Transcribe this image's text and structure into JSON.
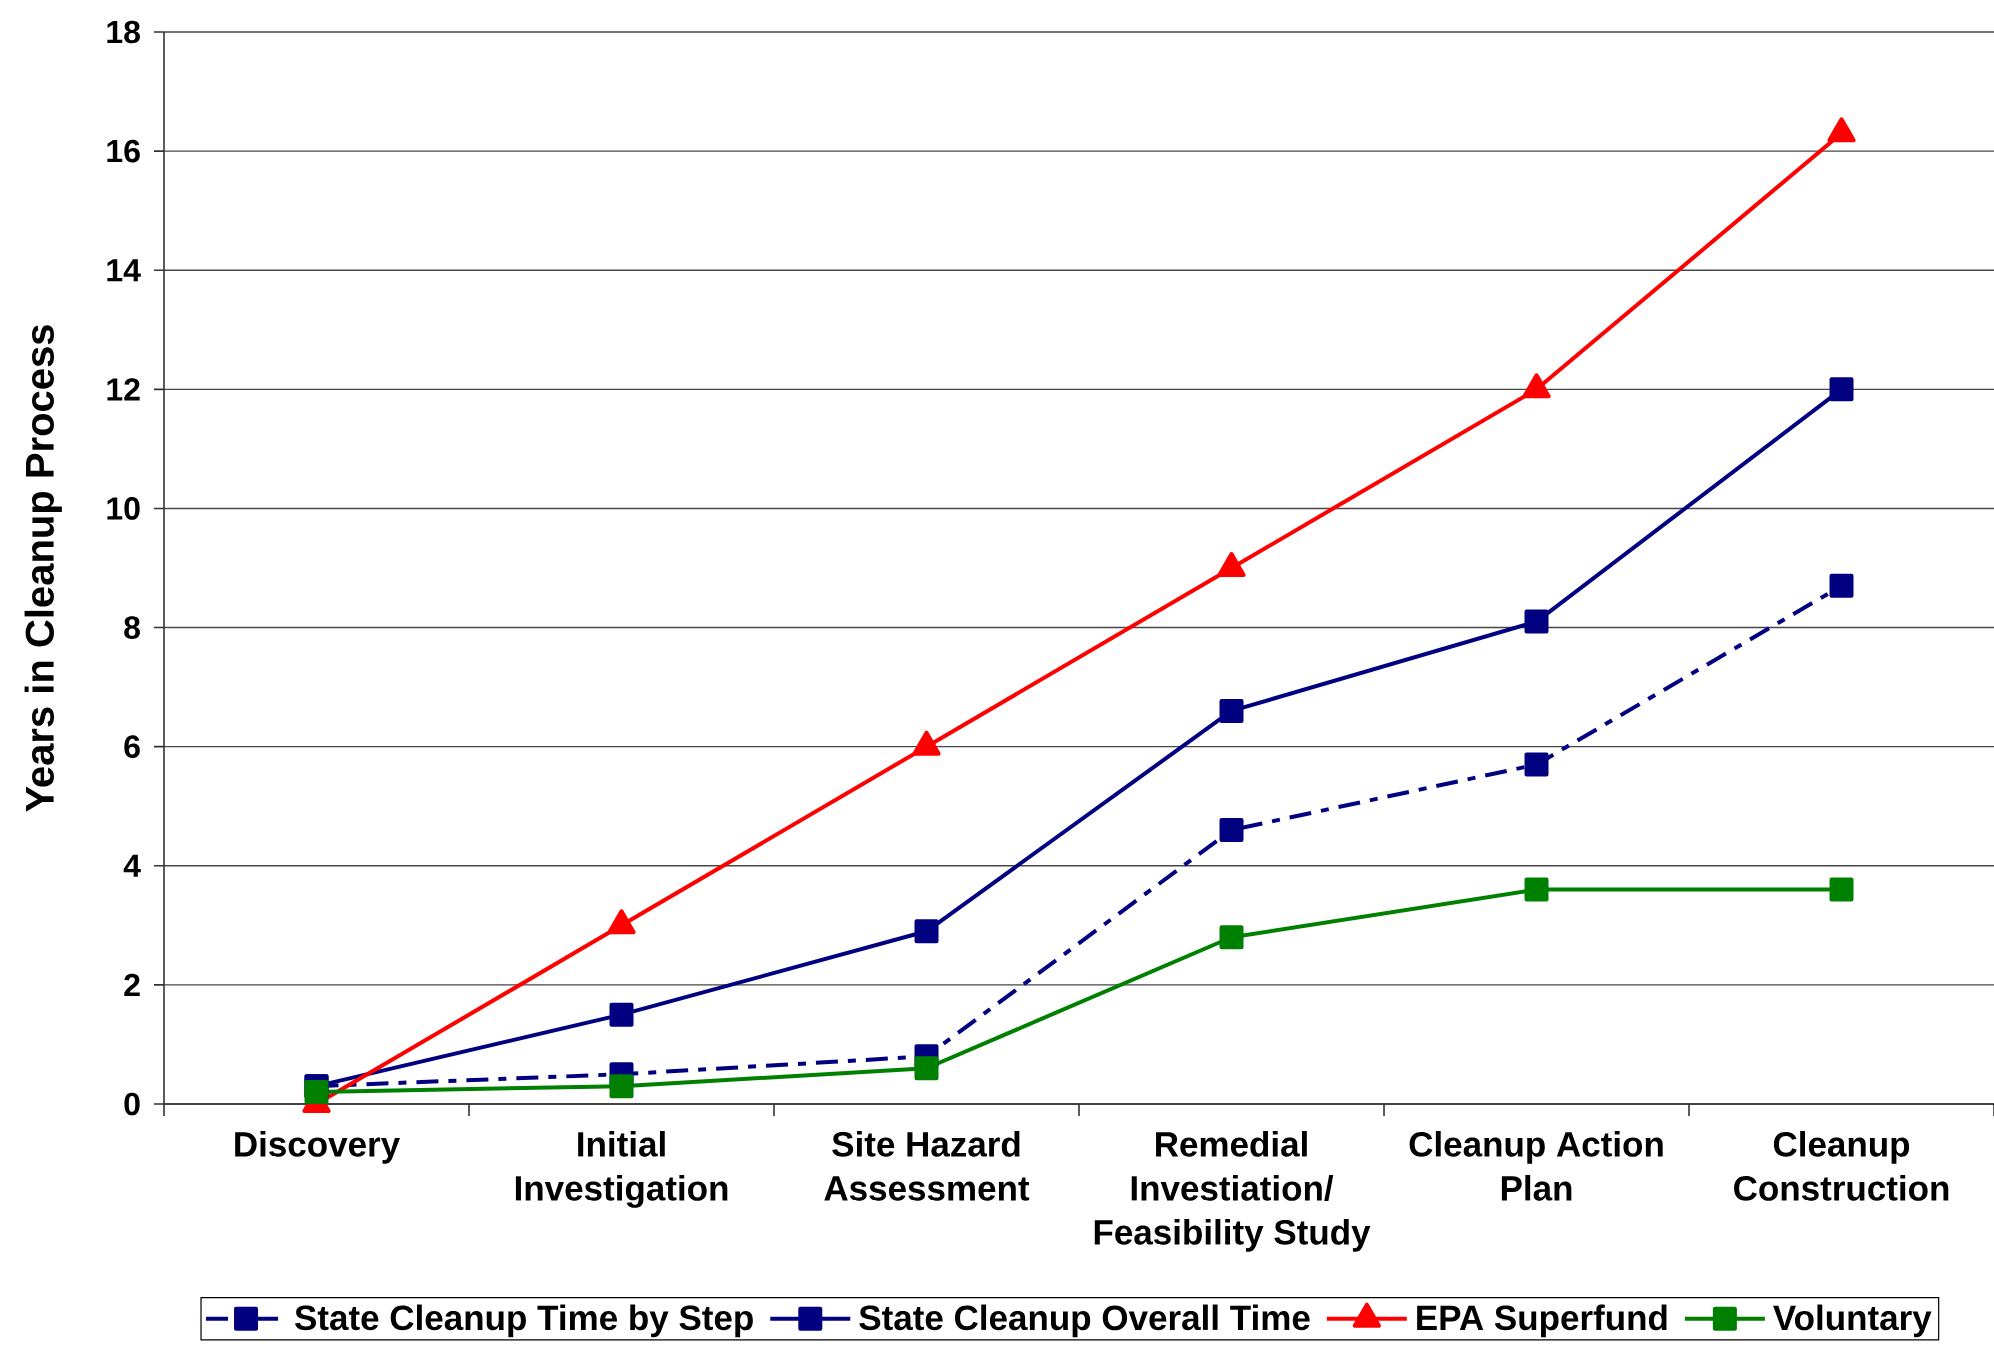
{
  "chart_data": {
    "type": "line",
    "ylabel": "Years in Cleanup Process",
    "categories": [
      "Discovery",
      "Initial Investigation",
      "Site Hazard Assessment",
      "Remedial Investiation/ Feasibility Study",
      "Cleanup Action Plan",
      "Cleanup Construction"
    ],
    "series": [
      {
        "name": "State Cleanup Time by Step",
        "color": "#000080",
        "marker": "square",
        "line_style": "dashed",
        "values": [
          0.3,
          0.5,
          0.8,
          4.6,
          5.7,
          8.7
        ]
      },
      {
        "name": "State Cleanup Overall Time",
        "color": "#000080",
        "marker": "square",
        "line_style": "solid",
        "values": [
          0.3,
          1.5,
          2.9,
          6.6,
          8.1,
          12.0
        ]
      },
      {
        "name": "EPA Superfund",
        "color": "#ff0000",
        "marker": "triangle",
        "line_style": "solid",
        "values": [
          0,
          3,
          6,
          9,
          12,
          16.3
        ]
      },
      {
        "name": "Voluntary",
        "color": "#008000",
        "marker": "square",
        "line_style": "solid",
        "values": [
          0.2,
          0.3,
          0.6,
          2.8,
          3.6,
          3.6
        ]
      }
    ],
    "ylim": [
      0,
      18
    ],
    "yticks": [
      0,
      2,
      4,
      6,
      8,
      10,
      12,
      14,
      16,
      18
    ],
    "grid": "y",
    "legend": "bottom"
  }
}
